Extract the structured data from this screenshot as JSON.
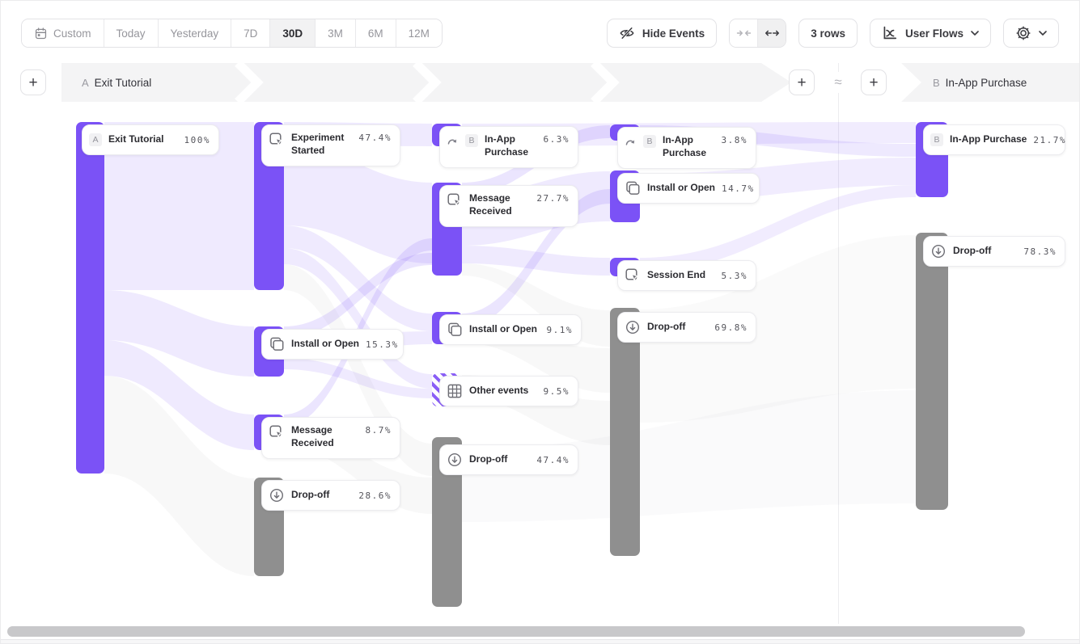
{
  "toolbar": {
    "date_ranges": [
      {
        "label": "Custom",
        "selected": false
      },
      {
        "label": "Today",
        "selected": false
      },
      {
        "label": "Yesterday",
        "selected": false
      },
      {
        "label": "7D",
        "selected": false
      },
      {
        "label": "30D",
        "selected": true
      },
      {
        "label": "3M",
        "selected": false
      },
      {
        "label": "6M",
        "selected": false
      },
      {
        "label": "12M",
        "selected": false
      }
    ],
    "hide_events": "Hide Events",
    "rows": "3 rows",
    "view": "User Flows"
  },
  "header": {
    "flow_a_badge": "A",
    "flow_a_label": "Exit Tutorial",
    "flow_b_badge": "B",
    "flow_b_label": "In-App Purchase",
    "approx": "≈",
    "plus": "+"
  },
  "nodes": [
    {
      "label": "Exit Tutorial",
      "pct": "100%",
      "badge": "A",
      "color": "purple"
    },
    {
      "label": "Experiment Started",
      "pct": "47.4%",
      "color": "purple",
      "icon": "tap"
    },
    {
      "label": "Install or Open",
      "pct": "15.3%",
      "color": "purple",
      "icon": "windows"
    },
    {
      "label": "Message Received",
      "pct": "8.7%",
      "color": "purple",
      "icon": "tap"
    },
    {
      "label": "Drop-off",
      "pct": "28.6%",
      "color": "gray",
      "icon": "dropoff"
    },
    {
      "label": "In-App Purchase",
      "pct": "6.3%",
      "badge": "B",
      "color": "purple",
      "icon": "goto"
    },
    {
      "label": "Message Received",
      "pct": "27.7%",
      "color": "purple",
      "icon": "tap"
    },
    {
      "label": "Install or Open",
      "pct": "9.1%",
      "color": "purple",
      "icon": "windows"
    },
    {
      "label": "Other events",
      "pct": "9.5%",
      "color": "hatched",
      "icon": "grid"
    },
    {
      "label": "Drop-off",
      "pct": "47.4%",
      "color": "gray",
      "icon": "dropoff"
    },
    {
      "label": "In-App Purchase",
      "pct": "3.8%",
      "badge": "B",
      "color": "purple",
      "icon": "goto"
    },
    {
      "label": "Install or Open",
      "pct": "14.7%",
      "color": "purple",
      "icon": "windows"
    },
    {
      "label": "Session End",
      "pct": "5.3%",
      "color": "purple",
      "icon": "tap"
    },
    {
      "label": "Drop-off",
      "pct": "69.8%",
      "color": "gray",
      "icon": "dropoff"
    },
    {
      "label": "In-App Purchase",
      "pct": "21.7%",
      "badge": "B",
      "color": "purple"
    },
    {
      "label": "Drop-off",
      "pct": "78.3%",
      "color": "gray",
      "icon": "dropoff"
    }
  ],
  "links": [
    {
      "from": 0,
      "to": 1
    },
    {
      "from": 0,
      "to": 2
    },
    {
      "from": 0,
      "to": 3
    },
    {
      "from": 0,
      "to": 4
    },
    {
      "from": 1,
      "to": 5
    },
    {
      "from": 1,
      "to": 6
    },
    {
      "from": 1,
      "to": 7
    },
    {
      "from": 1,
      "to": 8
    },
    {
      "from": 1,
      "to": 9
    },
    {
      "from": 2,
      "to": 6
    },
    {
      "from": 2,
      "to": 7
    },
    {
      "from": 2,
      "to": 8
    },
    {
      "from": 3,
      "to": 6
    },
    {
      "from": 3,
      "to": 9
    },
    {
      "from": 6,
      "to": 10
    },
    {
      "from": 6,
      "to": 11
    },
    {
      "from": 6,
      "to": 12
    },
    {
      "from": 6,
      "to": 13
    },
    {
      "from": 7,
      "to": 11
    },
    {
      "from": 7,
      "to": 13
    },
    {
      "from": 8,
      "to": 13
    },
    {
      "from": 5,
      "to": 14
    },
    {
      "from": 10,
      "to": 14
    },
    {
      "from": 11,
      "to": 14
    },
    {
      "from": 12,
      "to": 14
    },
    {
      "from": 13,
      "to": 15
    },
    {
      "from": 9,
      "to": 15
    }
  ],
  "colors": {
    "node_purple": "#7b52f6",
    "node_gray": "#8f8f8f",
    "ribbon": "#7b52f6",
    "band": "#f4f4f5"
  }
}
